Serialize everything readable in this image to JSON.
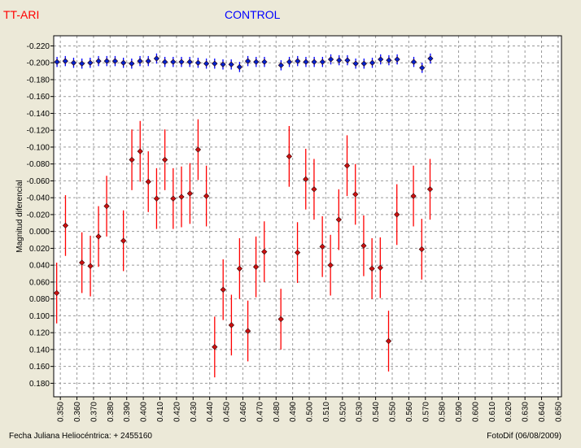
{
  "chart_data": {
    "type": "scatter",
    "legend_position": "top",
    "y_inverted": true,
    "grid": true,
    "ylabel": "Magnitud diferencial",
    "xlabel": "Fecha Juliana Heliocéntrica:  + 2455160",
    "footer_right": "FotoDif (06/08/2009)",
    "xlim": [
      0.346,
      0.652
    ],
    "ylim": [
      0.196,
      -0.232
    ],
    "x_ticks": [
      "0.350",
      "0.360",
      "0.370",
      "0.380",
      "0.390",
      "0.400",
      "0.410",
      "0.420",
      "0.430",
      "0.440",
      "0.450",
      "0.460",
      "0.470",
      "0.480",
      "0.490",
      "0.500",
      "0.510",
      "0.520",
      "0.530",
      "0.540",
      "0.550",
      "0.560",
      "0.570",
      "0.580",
      "0.590",
      "0.600",
      "0.610",
      "0.620",
      "0.630",
      "0.640",
      "0.650"
    ],
    "y_ticks": [
      "-0.220",
      "-0.200",
      "-0.180",
      "-0.160",
      "-0.140",
      "-0.120",
      "-0.100",
      "-0.080",
      "-0.060",
      "-0.040",
      "-0.020",
      "0.000",
      "0.020",
      "0.040",
      "0.060",
      "0.080",
      "0.100",
      "0.120",
      "0.140",
      "0.160",
      "0.180"
    ],
    "series": [
      {
        "name": "TT-ARI",
        "color": "#ff0000",
        "marker_color": "#cc1111",
        "points": [
          {
            "x": 0.3478,
            "y": 0.073,
            "err": 0.036
          },
          {
            "x": 0.3531,
            "y": -0.007,
            "err": 0.036
          },
          {
            "x": 0.363,
            "y": 0.037,
            "err": 0.036
          },
          {
            "x": 0.3681,
            "y": 0.041,
            "err": 0.036
          },
          {
            "x": 0.373,
            "y": 0.006,
            "err": 0.036
          },
          {
            "x": 0.3779,
            "y": -0.03,
            "err": 0.036
          },
          {
            "x": 0.388,
            "y": 0.011,
            "err": 0.036
          },
          {
            "x": 0.3931,
            "y": -0.085,
            "err": 0.036
          },
          {
            "x": 0.3981,
            "y": -0.095,
            "err": 0.036
          },
          {
            "x": 0.403,
            "y": -0.059,
            "err": 0.036
          },
          {
            "x": 0.408,
            "y": -0.039,
            "err": 0.036
          },
          {
            "x": 0.413,
            "y": -0.085,
            "err": 0.036
          },
          {
            "x": 0.418,
            "y": -0.039,
            "err": 0.036
          },
          {
            "x": 0.423,
            "y": -0.041,
            "err": 0.036
          },
          {
            "x": 0.4281,
            "y": -0.045,
            "err": 0.036
          },
          {
            "x": 0.433,
            "y": -0.097,
            "err": 0.036
          },
          {
            "x": 0.438,
            "y": -0.042,
            "err": 0.036
          },
          {
            "x": 0.443,
            "y": 0.137,
            "err": 0.036
          },
          {
            "x": 0.4481,
            "y": 0.069,
            "err": 0.036
          },
          {
            "x": 0.4531,
            "y": 0.111,
            "err": 0.036
          },
          {
            "x": 0.458,
            "y": 0.044,
            "err": 0.036
          },
          {
            "x": 0.463,
            "y": 0.118,
            "err": 0.036
          },
          {
            "x": 0.4679,
            "y": 0.042,
            "err": 0.036
          },
          {
            "x": 0.4729,
            "y": 0.024,
            "err": 0.036
          },
          {
            "x": 0.4829,
            "y": 0.104,
            "err": 0.036
          },
          {
            "x": 0.4879,
            "y": -0.089,
            "err": 0.036
          },
          {
            "x": 0.4929,
            "y": 0.025,
            "err": 0.036
          },
          {
            "x": 0.4979,
            "y": -0.062,
            "err": 0.036
          },
          {
            "x": 0.5029,
            "y": -0.05,
            "err": 0.036
          },
          {
            "x": 0.5079,
            "y": 0.018,
            "err": 0.036
          },
          {
            "x": 0.5128,
            "y": 0.04,
            "err": 0.036
          },
          {
            "x": 0.5178,
            "y": -0.014,
            "err": 0.036
          },
          {
            "x": 0.5228,
            "y": -0.078,
            "err": 0.036
          },
          {
            "x": 0.5278,
            "y": -0.044,
            "err": 0.036
          },
          {
            "x": 0.5328,
            "y": 0.017,
            "err": 0.036
          },
          {
            "x": 0.5378,
            "y": 0.044,
            "err": 0.036
          },
          {
            "x": 0.5428,
            "y": 0.043,
            "err": 0.036
          },
          {
            "x": 0.5478,
            "y": 0.13,
            "err": 0.036
          },
          {
            "x": 0.5528,
            "y": -0.02,
            "err": 0.036
          },
          {
            "x": 0.5628,
            "y": -0.042,
            "err": 0.036
          },
          {
            "x": 0.5678,
            "y": 0.021,
            "err": 0.036
          },
          {
            "x": 0.5728,
            "y": -0.05,
            "err": 0.036
          }
        ]
      },
      {
        "name": "CONTROL",
        "color": "#0000ff",
        "marker_color": "#0022cc",
        "points": [
          {
            "x": 0.348,
            "y": -0.201,
            "err": 0.006
          },
          {
            "x": 0.353,
            "y": -0.202,
            "err": 0.006
          },
          {
            "x": 0.358,
            "y": -0.2,
            "err": 0.006
          },
          {
            "x": 0.363,
            "y": -0.199,
            "err": 0.006
          },
          {
            "x": 0.368,
            "y": -0.2,
            "err": 0.006
          },
          {
            "x": 0.373,
            "y": -0.202,
            "err": 0.006
          },
          {
            "x": 0.378,
            "y": -0.202,
            "err": 0.006
          },
          {
            "x": 0.383,
            "y": -0.202,
            "err": 0.006
          },
          {
            "x": 0.388,
            "y": -0.2,
            "err": 0.006
          },
          {
            "x": 0.393,
            "y": -0.199,
            "err": 0.006
          },
          {
            "x": 0.398,
            "y": -0.202,
            "err": 0.006
          },
          {
            "x": 0.403,
            "y": -0.202,
            "err": 0.006
          },
          {
            "x": 0.408,
            "y": -0.205,
            "err": 0.006
          },
          {
            "x": 0.413,
            "y": -0.201,
            "err": 0.006
          },
          {
            "x": 0.418,
            "y": -0.201,
            "err": 0.006
          },
          {
            "x": 0.423,
            "y": -0.201,
            "err": 0.006
          },
          {
            "x": 0.428,
            "y": -0.201,
            "err": 0.006
          },
          {
            "x": 0.433,
            "y": -0.2,
            "err": 0.006
          },
          {
            "x": 0.438,
            "y": -0.199,
            "err": 0.006
          },
          {
            "x": 0.443,
            "y": -0.199,
            "err": 0.006
          },
          {
            "x": 0.448,
            "y": -0.198,
            "err": 0.006
          },
          {
            "x": 0.453,
            "y": -0.198,
            "err": 0.006
          },
          {
            "x": 0.458,
            "y": -0.195,
            "err": 0.006
          },
          {
            "x": 0.463,
            "y": -0.202,
            "err": 0.006
          },
          {
            "x": 0.468,
            "y": -0.201,
            "err": 0.006
          },
          {
            "x": 0.473,
            "y": -0.201,
            "err": 0.006
          },
          {
            "x": 0.483,
            "y": -0.197,
            "err": 0.006
          },
          {
            "x": 0.488,
            "y": -0.201,
            "err": 0.006
          },
          {
            "x": 0.493,
            "y": -0.202,
            "err": 0.006
          },
          {
            "x": 0.498,
            "y": -0.201,
            "err": 0.006
          },
          {
            "x": 0.503,
            "y": -0.201,
            "err": 0.006
          },
          {
            "x": 0.508,
            "y": -0.201,
            "err": 0.006
          },
          {
            "x": 0.513,
            "y": -0.204,
            "err": 0.006
          },
          {
            "x": 0.518,
            "y": -0.203,
            "err": 0.006
          },
          {
            "x": 0.523,
            "y": -0.203,
            "err": 0.006
          },
          {
            "x": 0.528,
            "y": -0.199,
            "err": 0.006
          },
          {
            "x": 0.533,
            "y": -0.199,
            "err": 0.006
          },
          {
            "x": 0.538,
            "y": -0.2,
            "err": 0.006
          },
          {
            "x": 0.543,
            "y": -0.204,
            "err": 0.006
          },
          {
            "x": 0.548,
            "y": -0.203,
            "err": 0.006
          },
          {
            "x": 0.553,
            "y": -0.204,
            "err": 0.006
          },
          {
            "x": 0.563,
            "y": -0.201,
            "err": 0.006
          },
          {
            "x": 0.568,
            "y": -0.194,
            "err": 0.006
          },
          {
            "x": 0.573,
            "y": -0.205,
            "err": 0.006
          }
        ]
      }
    ]
  }
}
